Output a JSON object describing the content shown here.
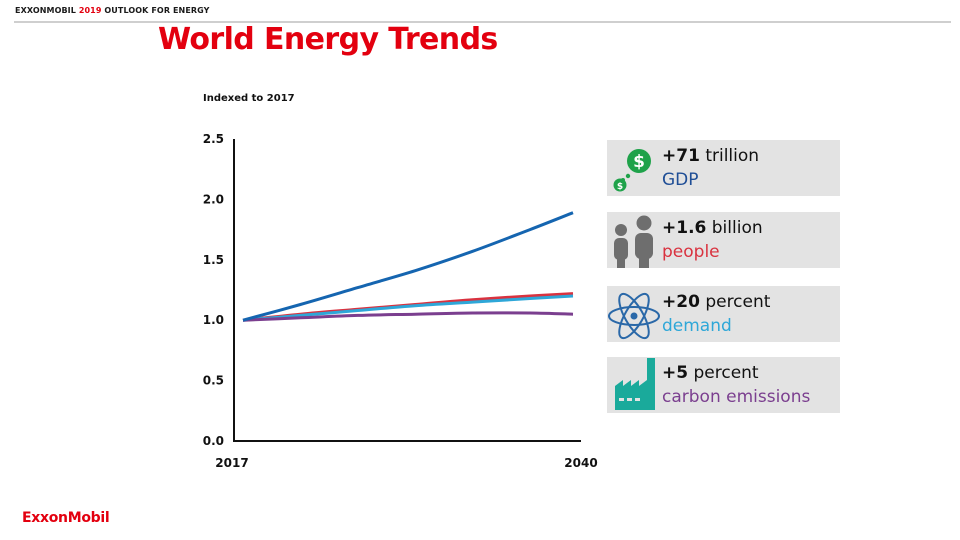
{
  "header": {
    "brand": "EXXONMOBIL",
    "year": "2019",
    "suffix": "OUTLOOK FOR ENERGY"
  },
  "page_title": "World Energy Trends",
  "footer": {
    "logo_text": "ExxonMobil"
  },
  "colors": {
    "brand_red": "#e3000f",
    "gdp": "#1565b0",
    "people": "#d9323f",
    "demand": "#2ea7d8",
    "emissions": "#7b3f8f",
    "card_bg": "#e3e3e3"
  },
  "cards": [
    {
      "icon": "dollar-coins-icon",
      "value": "+71",
      "unit": "trillion",
      "label": "GDP",
      "label_color": "#1f4e96"
    },
    {
      "icon": "people-icon",
      "value": "+1.6",
      "unit": "billion",
      "label": "people",
      "label_color": "#d9323f"
    },
    {
      "icon": "atom-icon",
      "value": "+20",
      "unit": "percent",
      "label": "demand",
      "label_color": "#2ea7d8"
    },
    {
      "icon": "factory-icon",
      "value": "+5",
      "unit": "percent",
      "label": "carbon emissions",
      "label_color": "#7b3f8f"
    }
  ],
  "chart_data": {
    "type": "line",
    "title": "",
    "ylabel": "Indexed to 2017",
    "xlabel": "",
    "x": [
      2017,
      2021,
      2025,
      2029,
      2033,
      2037,
      2040
    ],
    "x_tick_labels": [
      "2017",
      "2040"
    ],
    "y_tick_labels": [
      "0.0",
      "0.5",
      "1.0",
      "1.5",
      "2.0",
      "2.5"
    ],
    "ylim": [
      0,
      2.5
    ],
    "xlim": [
      2017,
      2040
    ],
    "grid": false,
    "legend": "none",
    "series": [
      {
        "name": "GDP",
        "color": "#1565b0",
        "values": [
          1.0,
          1.13,
          1.27,
          1.41,
          1.57,
          1.75,
          1.89
        ]
      },
      {
        "name": "people",
        "color": "#d9323f",
        "values": [
          1.0,
          1.05,
          1.09,
          1.13,
          1.17,
          1.2,
          1.22
        ]
      },
      {
        "name": "demand",
        "color": "#2ea7d8",
        "values": [
          1.0,
          1.04,
          1.08,
          1.12,
          1.15,
          1.18,
          1.2
        ]
      },
      {
        "name": "carbon emissions",
        "color": "#7b3f8f",
        "values": [
          1.0,
          1.02,
          1.04,
          1.05,
          1.06,
          1.06,
          1.05
        ]
      }
    ]
  }
}
